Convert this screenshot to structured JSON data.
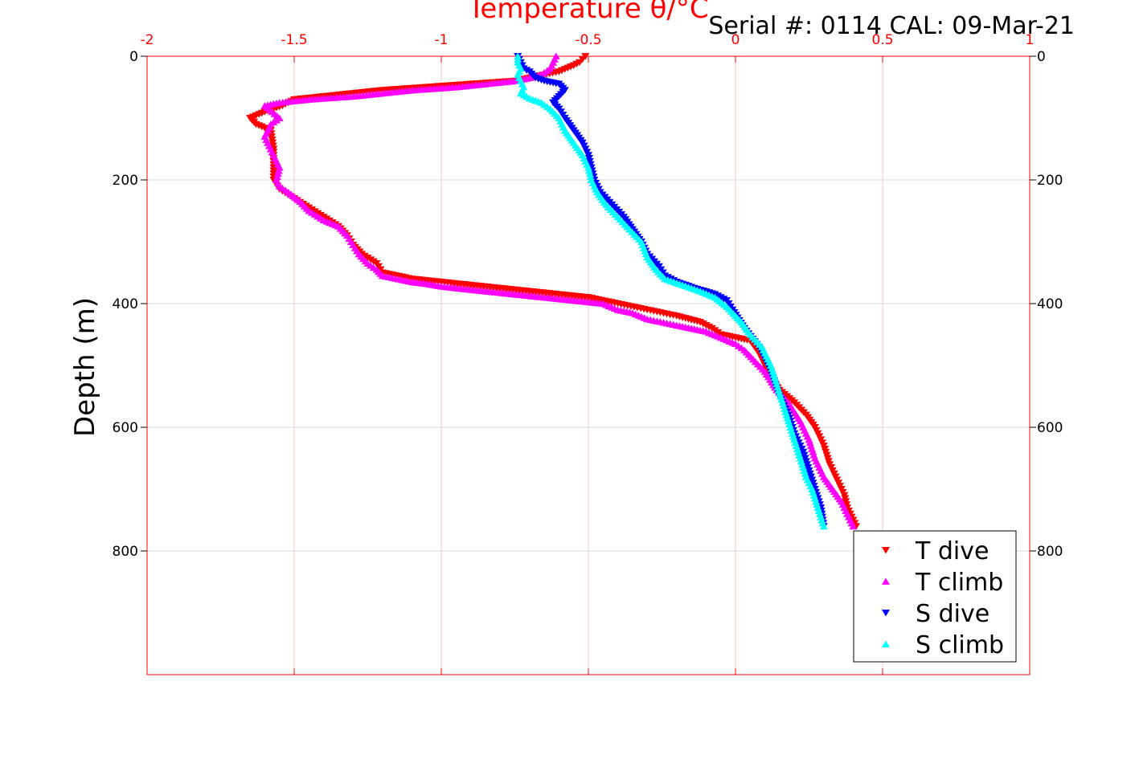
{
  "header": {
    "serial_text": "Serial #: 0114  CAL: 09-Mar-21"
  },
  "chart_data": {
    "type": "scatter",
    "x_label": "Temperature θ/°C",
    "y_label": "Depth (m)",
    "xlim": [
      -2,
      1
    ],
    "ylim": [
      0,
      1000
    ],
    "y_reversed": true,
    "x_axis_position": "top",
    "x_ticks": [
      -2,
      -1.5,
      -1,
      -0.5,
      0,
      0.5,
      1
    ],
    "x_tick_labels": [
      "-2",
      "-1.5",
      "-1",
      "-0.5",
      "0",
      "0.5",
      "1"
    ],
    "y_ticks": [
      0,
      200,
      400,
      600,
      800
    ],
    "y_tick_labels": [
      "0",
      "200",
      "400",
      "600",
      "800"
    ],
    "grid": true,
    "legend_placement": "bottom-right",
    "colors": {
      "axis_x": "#ff0000",
      "axis_y": "#000000",
      "grid": "#d9d9d9"
    },
    "series": [
      {
        "name": "T dive",
        "color": "#ff0000",
        "marker": "triangle-down",
        "points": [
          [
            -0.51,
            0
          ],
          [
            -0.52,
            5
          ],
          [
            -0.53,
            10
          ],
          [
            -0.55,
            15
          ],
          [
            -0.6,
            25
          ],
          [
            -0.75,
            40
          ],
          [
            -0.9,
            45
          ],
          [
            -1.05,
            50
          ],
          [
            -1.2,
            55
          ],
          [
            -1.3,
            60
          ],
          [
            -1.4,
            65
          ],
          [
            -1.5,
            70
          ],
          [
            -1.54,
            80
          ],
          [
            -1.6,
            90
          ],
          [
            -1.65,
            100
          ],
          [
            -1.63,
            110
          ],
          [
            -1.58,
            120
          ],
          [
            -1.57,
            150
          ],
          [
            -1.57,
            180
          ],
          [
            -1.57,
            200
          ],
          [
            -1.55,
            215
          ],
          [
            -1.5,
            230
          ],
          [
            -1.45,
            245
          ],
          [
            -1.4,
            260
          ],
          [
            -1.35,
            275
          ],
          [
            -1.32,
            290
          ],
          [
            -1.3,
            305
          ],
          [
            -1.27,
            320
          ],
          [
            -1.22,
            335
          ],
          [
            -1.2,
            350
          ],
          [
            -1.1,
            360
          ],
          [
            -1.0,
            365
          ],
          [
            -0.9,
            370
          ],
          [
            -0.8,
            375
          ],
          [
            -0.7,
            380
          ],
          [
            -0.6,
            385
          ],
          [
            -0.5,
            390
          ],
          [
            -0.4,
            400
          ],
          [
            -0.3,
            410
          ],
          [
            -0.2,
            420
          ],
          [
            -0.12,
            430
          ],
          [
            -0.08,
            440
          ],
          [
            -0.05,
            450
          ],
          [
            0.0,
            455
          ],
          [
            0.05,
            460
          ],
          [
            0.08,
            480
          ],
          [
            0.1,
            500
          ],
          [
            0.12,
            520
          ],
          [
            0.15,
            540
          ],
          [
            0.2,
            560
          ],
          [
            0.24,
            580
          ],
          [
            0.27,
            600
          ],
          [
            0.3,
            630
          ],
          [
            0.32,
            660
          ],
          [
            0.35,
            690
          ],
          [
            0.37,
            710
          ],
          [
            0.38,
            730
          ],
          [
            0.4,
            750
          ],
          [
            0.41,
            760
          ]
        ]
      },
      {
        "name": "T climb",
        "color": "#ff00ff",
        "marker": "triangle-up",
        "points": [
          [
            0.4,
            760
          ],
          [
            0.38,
            740
          ],
          [
            0.36,
            720
          ],
          [
            0.33,
            700
          ],
          [
            0.3,
            680
          ],
          [
            0.27,
            650
          ],
          [
            0.25,
            620
          ],
          [
            0.22,
            590
          ],
          [
            0.18,
            560
          ],
          [
            0.14,
            540
          ],
          [
            0.1,
            510
          ],
          [
            0.06,
            490
          ],
          [
            0.03,
            475
          ],
          [
            0.0,
            465
          ],
          [
            -0.05,
            455
          ],
          [
            -0.1,
            445
          ],
          [
            -0.15,
            440
          ],
          [
            -0.2,
            435
          ],
          [
            -0.3,
            425
          ],
          [
            -0.35,
            415
          ],
          [
            -0.4,
            410
          ],
          [
            -0.45,
            400
          ],
          [
            -0.55,
            395
          ],
          [
            -0.65,
            390
          ],
          [
            -0.75,
            385
          ],
          [
            -0.85,
            380
          ],
          [
            -0.95,
            375
          ],
          [
            -1.0,
            372
          ],
          [
            -1.05,
            368
          ],
          [
            -1.1,
            365
          ],
          [
            -1.2,
            355
          ],
          [
            -1.22,
            345
          ],
          [
            -1.25,
            335
          ],
          [
            -1.28,
            320
          ],
          [
            -1.3,
            305
          ],
          [
            -1.32,
            290
          ],
          [
            -1.35,
            275
          ],
          [
            -1.4,
            265
          ],
          [
            -1.45,
            250
          ],
          [
            -1.48,
            235
          ],
          [
            -1.52,
            220
          ],
          [
            -1.55,
            210
          ],
          [
            -1.56,
            200
          ],
          [
            -1.55,
            180
          ],
          [
            -1.57,
            160
          ],
          [
            -1.6,
            130
          ],
          [
            -1.58,
            110
          ],
          [
            -1.55,
            100
          ],
          [
            -1.6,
            80
          ],
          [
            -1.55,
            75
          ],
          [
            -1.45,
            70
          ],
          [
            -1.3,
            65
          ],
          [
            -1.2,
            60
          ],
          [
            -1.1,
            55
          ],
          [
            -0.95,
            50
          ],
          [
            -0.85,
            45
          ],
          [
            -0.75,
            40
          ],
          [
            -0.7,
            35
          ],
          [
            -0.66,
            30
          ],
          [
            -0.63,
            20
          ],
          [
            -0.62,
            10
          ],
          [
            -0.61,
            0
          ]
        ]
      },
      {
        "name": "S dive",
        "color": "#0000ff",
        "marker": "triangle-down",
        "points": [
          [
            -0.74,
            0
          ],
          [
            -0.73,
            10
          ],
          [
            -0.72,
            20
          ],
          [
            -0.7,
            25
          ],
          [
            -0.68,
            35
          ],
          [
            -0.65,
            40
          ],
          [
            -0.6,
            45
          ],
          [
            -0.58,
            55
          ],
          [
            -0.6,
            65
          ],
          [
            -0.62,
            75
          ],
          [
            -0.6,
            85
          ],
          [
            -0.58,
            100
          ],
          [
            -0.55,
            120
          ],
          [
            -0.52,
            140
          ],
          [
            -0.5,
            160
          ],
          [
            -0.49,
            180
          ],
          [
            -0.48,
            200
          ],
          [
            -0.46,
            220
          ],
          [
            -0.42,
            240
          ],
          [
            -0.38,
            260
          ],
          [
            -0.35,
            280
          ],
          [
            -0.32,
            300
          ],
          [
            -0.3,
            320
          ],
          [
            -0.26,
            340
          ],
          [
            -0.24,
            355
          ],
          [
            -0.2,
            365
          ],
          [
            -0.14,
            375
          ],
          [
            -0.07,
            385
          ],
          [
            -0.03,
            395
          ],
          [
            -0.01,
            410
          ],
          [
            0.03,
            440
          ],
          [
            0.08,
            470
          ],
          [
            0.12,
            510
          ],
          [
            0.15,
            550
          ],
          [
            0.18,
            580
          ],
          [
            0.2,
            610
          ],
          [
            0.23,
            640
          ],
          [
            0.25,
            670
          ],
          [
            0.27,
            700
          ],
          [
            0.29,
            730
          ],
          [
            0.3,
            760
          ]
        ]
      },
      {
        "name": "S climb",
        "color": "#00ffff",
        "marker": "triangle-up",
        "points": [
          [
            0.3,
            760
          ],
          [
            0.28,
            730
          ],
          [
            0.26,
            700
          ],
          [
            0.24,
            680
          ],
          [
            0.22,
            650
          ],
          [
            0.2,
            620
          ],
          [
            0.18,
            590
          ],
          [
            0.16,
            560
          ],
          [
            0.14,
            530
          ],
          [
            0.12,
            500
          ],
          [
            0.09,
            470
          ],
          [
            0.05,
            450
          ],
          [
            0.02,
            430
          ],
          [
            0.0,
            420
          ],
          [
            -0.03,
            405
          ],
          [
            -0.07,
            390
          ],
          [
            -0.12,
            380
          ],
          [
            -0.18,
            370
          ],
          [
            -0.24,
            360
          ],
          [
            -0.27,
            345
          ],
          [
            -0.3,
            325
          ],
          [
            -0.32,
            300
          ],
          [
            -0.36,
            280
          ],
          [
            -0.4,
            260
          ],
          [
            -0.44,
            240
          ],
          [
            -0.47,
            220
          ],
          [
            -0.49,
            200
          ],
          [
            -0.5,
            180
          ],
          [
            -0.52,
            160
          ],
          [
            -0.55,
            140
          ],
          [
            -0.58,
            120
          ],
          [
            -0.6,
            100
          ],
          [
            -0.63,
            85
          ],
          [
            -0.66,
            75
          ],
          [
            -0.7,
            68
          ],
          [
            -0.73,
            60
          ],
          [
            -0.72,
            50
          ],
          [
            -0.73,
            40
          ],
          [
            -0.74,
            30
          ],
          [
            -0.73,
            20
          ],
          [
            -0.74,
            10
          ],
          [
            -0.74,
            0
          ]
        ]
      }
    ]
  }
}
